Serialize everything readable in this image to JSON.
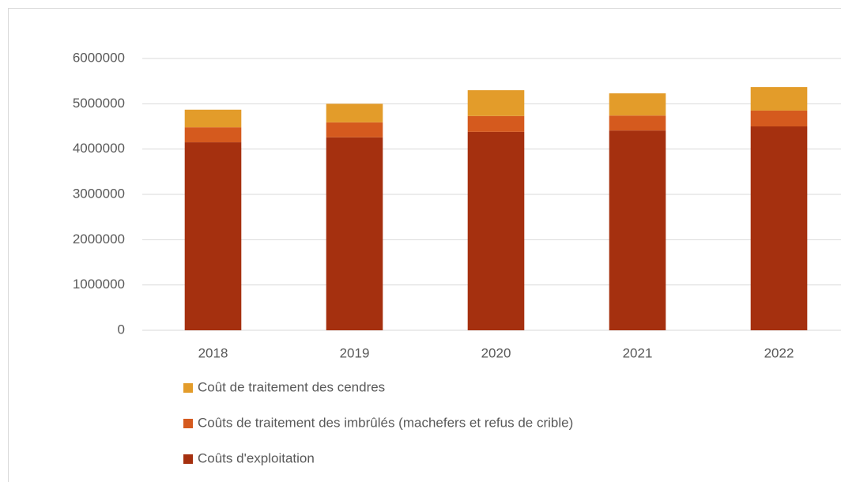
{
  "chart_data": {
    "type": "stacked_bar",
    "categories": [
      "2018",
      "2019",
      "2020",
      "2021",
      "2022"
    ],
    "series": [
      {
        "name": "Coûts d'exploitation",
        "color": "#a5300f",
        "values": [
          4150000,
          4260000,
          4380000,
          4410000,
          4500000
        ]
      },
      {
        "name": "Coûts de traitement des imbrûlés (machefers et refus de crible)",
        "color": "#d55a1e",
        "values": [
          330000,
          330000,
          350000,
          330000,
          350000
        ]
      },
      {
        "name": "Coût de traitement des cendres",
        "color": "#e39c2a",
        "values": [
          390000,
          410000,
          570000,
          490000,
          520000
        ]
      }
    ],
    "ylim": [
      0,
      6000000
    ],
    "yticks": [
      0,
      1000000,
      2000000,
      3000000,
      4000000,
      5000000,
      6000000
    ],
    "grid": true,
    "legend": "bottom"
  }
}
